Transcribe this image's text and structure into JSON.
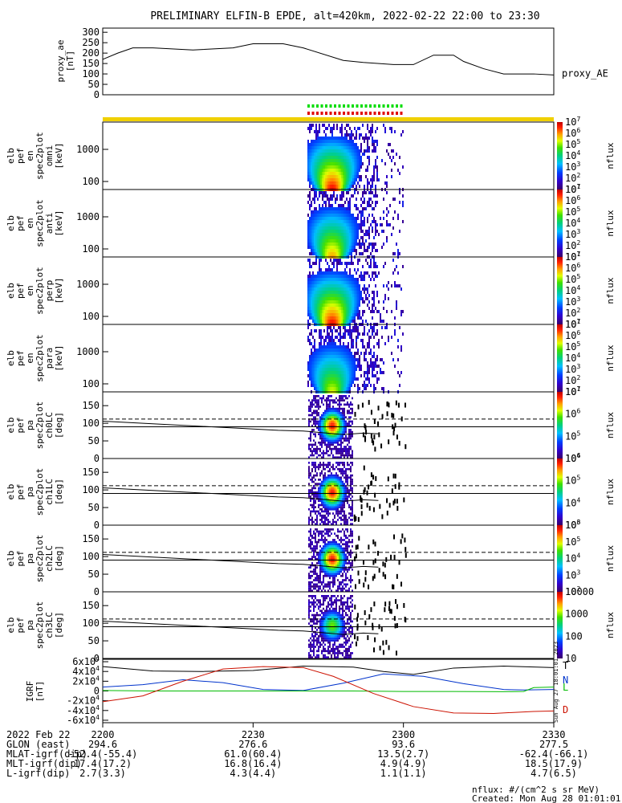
{
  "title": "PRELIMINARY ELFIN-B EPDE, alt=420km, 2022-02-22 22:00 to 23:30",
  "colors": {
    "ae_line": "#000000",
    "quality_green": "#00dd00",
    "quality_red": "#e00000",
    "quality_yellow": "#f0d000",
    "igrf_T": "#000000",
    "igrf_N": "#0033cc",
    "igrf_L": "#00bb00",
    "igrf_D": "#cc1100"
  },
  "footer": {
    "units_note": "nflux: #/(cm^2 s sr MeV)",
    "created": "Created: Mon Aug 28 01:01:01 2023",
    "side_stamp": "Sun Aug 27 18:01:01 2023"
  },
  "chart_data": [
    {
      "type": "line",
      "panel": "proxy_ae",
      "ylabel": [
        "proxy_ae",
        "[nT]"
      ],
      "yticks": [
        "0",
        "50",
        "100",
        "150",
        "200",
        "250",
        "300"
      ],
      "ylim": [
        0,
        320
      ],
      "legend": "proxy_AE",
      "x_minutes": [
        0,
        3,
        6,
        10,
        18,
        26,
        30,
        36,
        40,
        48,
        52,
        58,
        62,
        66,
        70,
        72,
        76,
        80,
        86,
        90
      ],
      "values": [
        170,
        200,
        225,
        225,
        215,
        225,
        245,
        245,
        225,
        165,
        155,
        145,
        145,
        190,
        190,
        160,
        125,
        100,
        100,
        95
      ]
    },
    {
      "type": "heatmap",
      "panel": "spectrogram",
      "rows": [
        {
          "label": [
            "elb",
            "pef",
            "en",
            "spec2plot",
            "omni",
            "[keV]"
          ],
          "yticks": [
            "100",
            "1000"
          ]
        },
        {
          "label": [
            "elb",
            "pef",
            "en",
            "spec2plot",
            "anti",
            "[keV]"
          ],
          "yticks": [
            "100",
            "1000"
          ]
        },
        {
          "label": [
            "elb",
            "pef",
            "en",
            "spec2plot",
            "perp",
            "[keV]"
          ],
          "yticks": [
            "100",
            "1000"
          ]
        },
        {
          "label": [
            "elb",
            "pef",
            "en",
            "spec2plot",
            "para",
            "[keV]"
          ],
          "yticks": [
            "100",
            "1000"
          ]
        }
      ],
      "colorbar_labels": [
        "10",
        "10",
        "10",
        "10",
        "10",
        "10",
        "10"
      ],
      "colorbar_exponents": [
        "1",
        "2",
        "3",
        "4",
        "5",
        "6",
        "7"
      ],
      "zlabel": "nflux"
    },
    {
      "type": "heatmap",
      "panel": "pitch_angle",
      "yticks": [
        "0",
        "50",
        "100",
        "150"
      ],
      "rows": [
        {
          "label": [
            "elb",
            "pef",
            "pa",
            "spec2plot",
            "ch0LC",
            "[deg]"
          ],
          "cb_ticks": [
            "10",
            "10",
            "10",
            "10"
          ],
          "cb_exps": [
            "4",
            "5",
            "6",
            "7"
          ]
        },
        {
          "label": [
            "elb",
            "pef",
            "pa",
            "spec2plot",
            "ch1LC",
            "[deg]"
          ],
          "cb_ticks": [
            "10",
            "10",
            "10",
            "10"
          ],
          "cb_exps": [
            "3",
            "4",
            "5",
            "6"
          ]
        },
        {
          "label": [
            "elb",
            "pef",
            "pa",
            "spec2plot",
            "ch2LC",
            "[deg]"
          ],
          "cb_ticks": [
            "10",
            "10",
            "10",
            "10",
            "10"
          ],
          "cb_exps": [
            "2",
            "3",
            "4",
            "5",
            "6"
          ]
        },
        {
          "label": [
            "elb",
            "pef",
            "pa",
            "spec2plot",
            "ch3LC",
            "[deg]"
          ],
          "cb_ticks": [
            "10",
            "100",
            "1000",
            "10000"
          ],
          "cb_exps": []
        }
      ],
      "zlabel": "nflux"
    },
    {
      "type": "line",
      "panel": "igrf",
      "ylabel": [
        "IGRF",
        "[nT]"
      ],
      "ytick_mant": [
        "-6x10",
        "-4x10",
        "-2x10",
        "0",
        "2x10",
        "4x10",
        "6x10"
      ],
      "ytick_exp": "4",
      "ylim": [
        -65000,
        65000
      ],
      "series": [
        {
          "name": "T",
          "x_minutes": [
            0,
            10,
            20,
            30,
            40,
            50,
            56,
            62,
            70,
            80,
            90
          ],
          "values": [
            50000,
            41000,
            40000,
            42000,
            51000,
            49000,
            40000,
            34000,
            47000,
            51000,
            48000
          ]
        },
        {
          "name": "N",
          "x_minutes": [
            0,
            8,
            16,
            24,
            32,
            40,
            48,
            56,
            64,
            72,
            80,
            84,
            90
          ],
          "values": [
            8000,
            13000,
            23000,
            17000,
            3000,
            1000,
            16000,
            35000,
            30000,
            15000,
            3000,
            2000,
            3000
          ]
        },
        {
          "name": "L",
          "x_minutes": [
            0,
            10,
            20,
            30,
            40,
            50,
            60,
            70,
            80,
            84,
            86,
            90
          ],
          "values": [
            1000,
            0,
            0,
            0,
            0,
            0,
            -1000,
            -1000,
            -1500,
            -1000,
            7000,
            8000
          ]
        },
        {
          "name": "D",
          "x_minutes": [
            0,
            8,
            16,
            24,
            32,
            40,
            46,
            54,
            62,
            70,
            78,
            86,
            90
          ],
          "values": [
            -22000,
            -10000,
            20000,
            45000,
            50000,
            48000,
            30000,
            -5000,
            -32000,
            -45000,
            -46000,
            -42000,
            -41000
          ]
        }
      ]
    }
  ],
  "ephemeris": {
    "header": "2022 Feb 22",
    "rows": [
      {
        "label": "GLON (east)"
      },
      {
        "label": "MLAT-igrf(dip)"
      },
      {
        "label": "MLT-igrf(dip)"
      },
      {
        "label": "L-igrf(dip)"
      }
    ],
    "columns": [
      {
        "time": "2200",
        "values": [
          "294.6",
          "-52.4(-55.4)",
          "17.4(17.2)",
          "2.7(3.3)"
        ]
      },
      {
        "time": "2230",
        "values": [
          "276.6",
          "61.0(60.4)",
          "16.8(16.4)",
          "4.3(4.4)"
        ]
      },
      {
        "time": "2300",
        "values": [
          "93.6",
          "13.5(2.7)",
          "4.9(4.9)",
          "1.1(1.1)"
        ]
      },
      {
        "time": "2330",
        "values": [
          "277.5",
          "-62.4(-66.1)",
          "18.5(17.9)",
          "4.7(6.5)"
        ]
      }
    ]
  }
}
